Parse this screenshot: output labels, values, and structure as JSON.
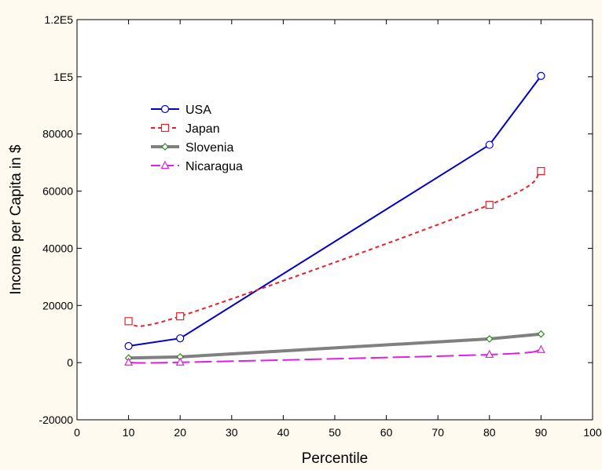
{
  "chart_data": {
    "type": "line",
    "title": "",
    "xlabel": "Percentile",
    "ylabel": "Income per Capita in $",
    "xlim": [
      0,
      100
    ],
    "ylim": [
      -20000,
      120000
    ],
    "x_ticks": [
      0,
      10,
      20,
      30,
      40,
      50,
      60,
      70,
      80,
      90,
      100
    ],
    "x_tick_labels": [
      "0",
      "10",
      "20",
      "30",
      "40",
      "50",
      "60",
      "70",
      "80",
      "90",
      "100"
    ],
    "y_ticks": [
      -20000,
      0,
      20000,
      40000,
      60000,
      80000,
      100000,
      120000
    ],
    "y_tick_labels": [
      "-20000",
      "0",
      "20000",
      "40000",
      "60000",
      "80000",
      "1E5",
      "1.2E5"
    ],
    "grid": false,
    "legend_position": "upper-left",
    "x": [
      10,
      20,
      80,
      90
    ],
    "series": [
      {
        "name": "USA",
        "values": [
          5800,
          8500,
          76200,
          100300
        ],
        "color": "#0000cc",
        "line_style": "solid",
        "line_width": 2,
        "marker": "circle",
        "curve": "linear"
      },
      {
        "name": "Japan",
        "values": [
          14500,
          16200,
          55200,
          67000
        ],
        "color": "#e8202a",
        "line_style": "dotted",
        "line_width": 2,
        "marker": "square",
        "curve": "smooth"
      },
      {
        "name": "Slovenia",
        "values": [
          1600,
          2000,
          8300,
          10000
        ],
        "color": "#808080",
        "line_style": "solid",
        "line_width": 4,
        "marker": "diamond",
        "marker_color": "#2e8b20",
        "curve": "linear"
      },
      {
        "name": "Nicaragua",
        "values": [
          100,
          100,
          2800,
          4500
        ],
        "color": "#e020e0",
        "line_style": "dashed",
        "line_width": 2,
        "marker": "triangle",
        "curve": "smooth"
      }
    ]
  }
}
